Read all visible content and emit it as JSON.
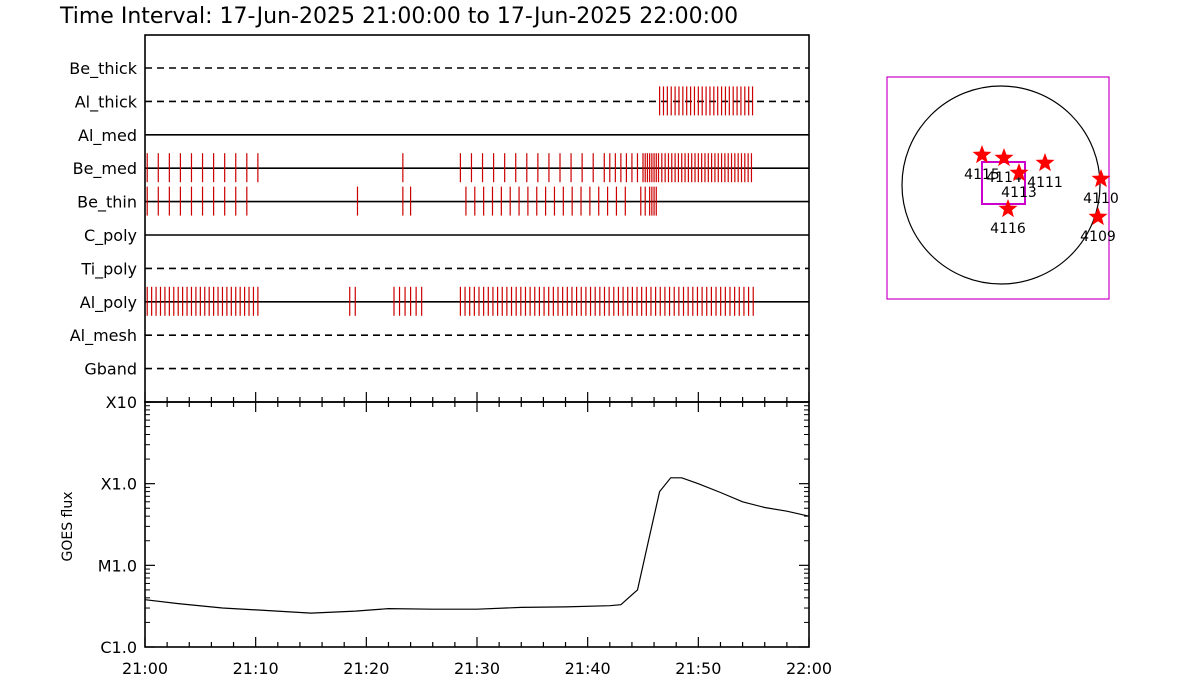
{
  "title": "Time Interval: 17-Jun-2025 21:00:00 to 17-Jun-2025 22:00:00",
  "colors": {
    "axis": "#000000",
    "event": "#cc0000",
    "fov": "#cc00cc",
    "star": "#ff0000"
  },
  "chart_data": [
    {
      "type": "event-timeline",
      "x_range": [
        "21:00",
        "22:00"
      ],
      "channels": [
        {
          "name": "Be_thick",
          "line": "dashed",
          "events": []
        },
        {
          "name": "Al_thick",
          "line": "dashed",
          "events": [
            {
              "start": "21:46.5",
              "end": "21:55.0",
              "spacing_min": 0.35
            }
          ]
        },
        {
          "name": "Al_med",
          "line": "solid",
          "events": []
        },
        {
          "name": "Be_med",
          "line": "solid",
          "events": [
            {
              "start": "21:00.2",
              "end": "21:10.5",
              "spacing_min": 1.0
            },
            {
              "start": "21:23.3",
              "end": "21:23.3",
              "spacing_min": 1.0
            },
            {
              "start": "21:28.5",
              "end": "21:41.0",
              "spacing_min": 1.0
            },
            {
              "start": "21:41.5",
              "end": "21:45.0",
              "spacing_min": 0.5
            },
            {
              "start": "21:45.2",
              "end": "21:46.5",
              "spacing_min": 0.2
            },
            {
              "start": "21:46.7",
              "end": "21:55.0",
              "spacing_min": 0.3
            }
          ]
        },
        {
          "name": "Be_thin",
          "line": "solid",
          "events": [
            {
              "start": "21:00.2",
              "end": "21:09.2",
              "spacing_min": 1.0
            },
            {
              "start": "21:19.2",
              "end": "21:19.2",
              "spacing_min": 1.0
            },
            {
              "start": "21:23.3",
              "end": "21:24.0",
              "spacing_min": 0.7
            },
            {
              "start": "21:29.0",
              "end": "21:44.0",
              "spacing_min": 0.8
            },
            {
              "start": "21:44.8",
              "end": "21:45.2",
              "spacing_min": 0.4
            },
            {
              "start": "21:45.6",
              "end": "21:46.3",
              "spacing_min": 0.2
            }
          ]
        },
        {
          "name": "C_poly",
          "line": "solid",
          "events": []
        },
        {
          "name": "Ti_poly",
          "line": "dashed",
          "events": []
        },
        {
          "name": "Al_poly",
          "line": "solid",
          "events": [
            {
              "start": "21:00.2",
              "end": "21:10.2",
              "spacing_min": 0.4
            },
            {
              "start": "21:18.5",
              "end": "21:19.0",
              "spacing_min": 0.5
            },
            {
              "start": "21:22.5",
              "end": "21:25.0",
              "spacing_min": 0.5
            },
            {
              "start": "21:28.5",
              "end": "21:55.0",
              "spacing_min": 0.42
            }
          ]
        },
        {
          "name": "Al_mesh",
          "line": "dashed",
          "events": []
        },
        {
          "name": "Gband",
          "line": "dashed",
          "events": []
        }
      ]
    },
    {
      "type": "line",
      "ylabel": "GOES flux",
      "y_scale": "log",
      "ylim": [
        1e-06,
        0.001
      ],
      "yticks": [
        {
          "label": "C1.0",
          "value": 1e-06
        },
        {
          "label": "M1.0",
          "value": 1e-05
        },
        {
          "label": "X1.0",
          "value": 0.0001
        },
        {
          "label": "X10",
          "value": 0.001
        }
      ],
      "xticks": [
        "21:00",
        "21:10",
        "21:20",
        "21:30",
        "21:40",
        "21:50",
        "22:00"
      ],
      "x_range_minutes": [
        0,
        60
      ],
      "series": [
        {
          "x": [
            0,
            3,
            7,
            11,
            15,
            19,
            22,
            26,
            30,
            34,
            38,
            42,
            43,
            44.5,
            45.5,
            46.5,
            47.5,
            48.5,
            50,
            52,
            54,
            56,
            58,
            60
          ],
          "y": [
            3.8e-06,
            3.4e-06,
            3e-06,
            2.8e-06,
            2.6e-06,
            2.75e-06,
            2.95e-06,
            2.9e-06,
            2.9e-06,
            3.05e-06,
            3.1e-06,
            3.2e-06,
            3.3e-06,
            5e-06,
            2e-05,
            8e-05,
            0.000118,
            0.000118,
            0.0001,
            7.8e-05,
            6e-05,
            5.1e-05,
            4.6e-05,
            4e-05
          ]
        }
      ]
    }
  ],
  "sun_map": {
    "markers": [
      {
        "label": "4115",
        "dx": -19,
        "dy": -30
      },
      {
        "label": "4114",
        "dx": 3,
        "dy": -27
      },
      {
        "label": "4113",
        "dx": 18,
        "dy": -12
      },
      {
        "label": "4111",
        "dx": 44,
        "dy": -22
      },
      {
        "label": "4116",
        "dx": 7,
        "dy": 24
      },
      {
        "label": "4110",
        "dx": 100,
        "dy": -6
      },
      {
        "label": "4109",
        "dx": 97,
        "dy": 32
      }
    ]
  }
}
